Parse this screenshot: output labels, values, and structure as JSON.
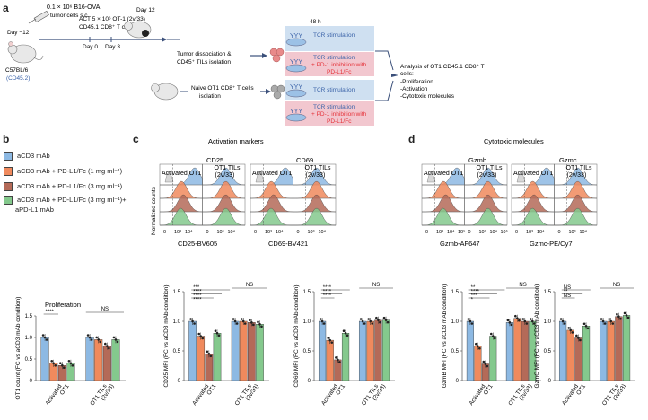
{
  "panel_labels": {
    "a": "a",
    "b": "b",
    "c": "c",
    "d": "d"
  },
  "colors": {
    "blue": "#8db9e3",
    "orange": "#f08a5d",
    "brown": "#b46a58",
    "green": "#84c98d",
    "lightblue_box": "#cfe0f1",
    "lightpink_box": "#f2c7cf",
    "gray": "#bdbdbd",
    "axis_blue": "#3a62a8",
    "red_text": "#e5333a"
  },
  "schematic": {
    "tumor_cells": "0.1 × 10⁶ B16-OVA",
    "tumor_cells2": "tumor cells s.c.",
    "day_minus12": "Day −12",
    "act_line1": "ACT 5 × 10⁶ OT-1 (2v/33)",
    "act_line2": "CD45.1 CD8⁺ T cells",
    "day0": "Day 0",
    "day3": "Day 3",
    "day12": "Day 12",
    "mouse_strain": "C57BL/6",
    "mouse_marker": "(CD45.2)",
    "hours": "48 h",
    "dissociation1": "Tumor dissociation &",
    "dissociation2": "CD45⁺ TILs isolation",
    "naive1": "Naive OT1 CD8⁺ T cells",
    "naive2": "isolation",
    "tcr_stim": "TCR stimulation",
    "tcr_stim_plus": "TCR stimulation",
    "pd1_line1": "+ PD-1 inhibition with",
    "pd1_line2": "PD-L1/Fc",
    "analysis_title": "Analysis of  OT1 CD45.1 CD8⁺ T",
    "analysis_cells": "cells:",
    "analysis_items": [
      "-Proliferation",
      "-Activation",
      "-Cytotoxic molecules"
    ]
  },
  "legend": {
    "items": [
      {
        "label": "aCD3 mAb"
      },
      {
        "label": "aCD3 mAb + PD-L1/Fc (1 mg ml⁻¹)"
      },
      {
        "label": "aCD3 mAb + PD-L1/Fc (3 mg ml⁻¹)"
      },
      {
        "label": "aCD3 mAb + PD-L1/Fc (3 mg ml⁻¹)+"
      }
    ],
    "extra_line": "aPD-L1 mAb"
  },
  "flow": {
    "activation_title": "Activation markers",
    "cytotoxic_title": "Cytotoxic molecules",
    "normalized_counts": "Normalized counts",
    "markers": [
      "CD25",
      "CD69",
      "Gzmb",
      "Gzmc"
    ],
    "activated_label": "Activated OT1",
    "tils_label1": "OT1 TILs",
    "tils_label2": "(2v/33)",
    "x_ticks": [
      "0",
      "10³",
      "10⁴"
    ],
    "x_ticks_wide": [
      "0",
      "10³",
      "10⁴",
      "10⁵"
    ],
    "axis_titles": [
      "CD25-BV605",
      "CD69-BV421",
      "Gzmb-AF647",
      "Gzmc-PE/Cy7"
    ]
  },
  "chart_data": [
    {
      "type": "bar",
      "title": "Proliferation",
      "ylabel": "OT1 count (FC vs aCD3 mAb condition)",
      "ylim": [
        0,
        1.5
      ],
      "yticks": [
        "0",
        "0.5",
        "1.0",
        "1.5"
      ],
      "groups": [
        "Activated OT1",
        "OT1 TILs (2v/33)"
      ],
      "series": [
        {
          "name": "aCD3 mAb",
          "values": [
            1.0,
            1.0
          ]
        },
        {
          "name": "aCD3 mAb + PD-L1/Fc (1 mg ml⁻¹)",
          "values": [
            0.4,
            0.95
          ]
        },
        {
          "name": "aCD3 mAb + PD-L1/Fc (3 mg ml⁻¹)",
          "values": [
            0.35,
            0.8
          ]
        },
        {
          "name": "aCD3 mAb + PD-L1/Fc (3 mg ml⁻¹)+ aPD-L1 mAb",
          "values": [
            0.4,
            0.95
          ]
        }
      ],
      "sig_labels": [
        "****",
        "NS"
      ]
    },
    {
      "type": "bar",
      "ylabel": "CD25 MFI (FC vs aCD3 mAb condition)",
      "ylim": [
        0,
        1.5
      ],
      "yticks": [
        "0",
        "0.5",
        "1.0",
        "1.5"
      ],
      "groups": [
        "Activated OT1",
        "OT1 TILs (2v/33)"
      ],
      "series": [
        {
          "name": "aCD3 mAb",
          "values": [
            1.0,
            1.0
          ]
        },
        {
          "name": "aCD3 mAb + PD-L1/Fc (1 mg ml⁻¹)",
          "values": [
            0.75,
            1.0
          ]
        },
        {
          "name": "aCD3 mAb + PD-L1/Fc (3 mg ml⁻¹)",
          "values": [
            0.45,
            0.98
          ]
        },
        {
          "name": "aCD3 mAb + PD-L1/Fc (3 mg ml⁻¹)+ aPD-L1 mAb",
          "values": [
            0.8,
            0.95
          ]
        }
      ],
      "sig_labels": [
        "***",
        "****",
        "****",
        "****",
        "NS"
      ]
    },
    {
      "type": "bar",
      "ylabel": "CD69 MFI (FC vs aCD3 mAb condition)",
      "ylim": [
        0,
        1.5
      ],
      "yticks": [
        "0",
        "0.5",
        "1.0",
        "1.5"
      ],
      "groups": [
        "Activated OT1",
        "OT1 TILs (2v/33)"
      ],
      "series": [
        {
          "name": "aCD3 mAb",
          "values": [
            1.0,
            1.0
          ]
        },
        {
          "name": "aCD3 mAb + PD-L1/Fc (1 mg ml⁻¹)",
          "values": [
            0.68,
            1.0
          ]
        },
        {
          "name": "aCD3 mAb + PD-L1/Fc (3 mg ml⁻¹)",
          "values": [
            0.35,
            1.02
          ]
        },
        {
          "name": "aCD3 mAb + PD-L1/Fc (3 mg ml⁻¹)+ aPD-L1 mAb",
          "values": [
            0.8,
            1.02
          ]
        }
      ],
      "sig_labels": [
        "****",
        "****",
        "****",
        "NS"
      ]
    },
    {
      "type": "bar",
      "ylabel": "GzmB MFI (FC vs aCD3 mAb condition)",
      "ylim": [
        0,
        1.5
      ],
      "yticks": [
        "0",
        "0.5",
        "1.0",
        "1.5"
      ],
      "groups": [
        "Activated OT1",
        "OT1 TILs (2v/33)"
      ],
      "series": [
        {
          "name": "aCD3 mAb",
          "values": [
            1.0,
            0.98
          ]
        },
        {
          "name": "aCD3 mAb + PD-L1/Fc (1 mg ml⁻¹)",
          "values": [
            0.58,
            1.05
          ]
        },
        {
          "name": "aCD3 mAb + PD-L1/Fc (3 mg ml⁻¹)",
          "values": [
            0.28,
            1.0
          ]
        },
        {
          "name": "aCD3 mAb + PD-L1/Fc (3 mg ml⁻¹)+ aPD-L1 mAb",
          "values": [
            0.75,
            1.0
          ]
        }
      ],
      "sig_labels": [
        "**",
        "****",
        "***",
        "*",
        "NS"
      ]
    },
    {
      "type": "bar",
      "ylabel": "GzmC MFI (FC vs aCD3 mAb condition)",
      "ylim": [
        0,
        1.5
      ],
      "yticks": [
        "0",
        "0.5",
        "1.0",
        "1.5"
      ],
      "groups": [
        "Activated OT1",
        "OT1 TILs (2v/33)"
      ],
      "series": [
        {
          "name": "aCD3 mAb",
          "values": [
            1.0,
            1.0
          ]
        },
        {
          "name": "aCD3 mAb + PD-L1/Fc (1 mg ml⁻¹)",
          "values": [
            0.85,
            1.0
          ]
        },
        {
          "name": "aCD3 mAb + PD-L1/Fc (3 mg ml⁻¹)",
          "values": [
            0.72,
            1.08
          ]
        },
        {
          "name": "aCD3 mAb + PD-L1/Fc (3 mg ml⁻¹)+ aPD-L1 mAb",
          "values": [
            0.92,
            1.1
          ]
        }
      ],
      "sig_labels": [
        "NS",
        "**",
        "NS",
        "NS"
      ]
    }
  ],
  "group_labels": {
    "activated1": "Activated",
    "activated2": "OT1",
    "tils1": "OT1 TILs",
    "tils2": "(2v/33)"
  }
}
